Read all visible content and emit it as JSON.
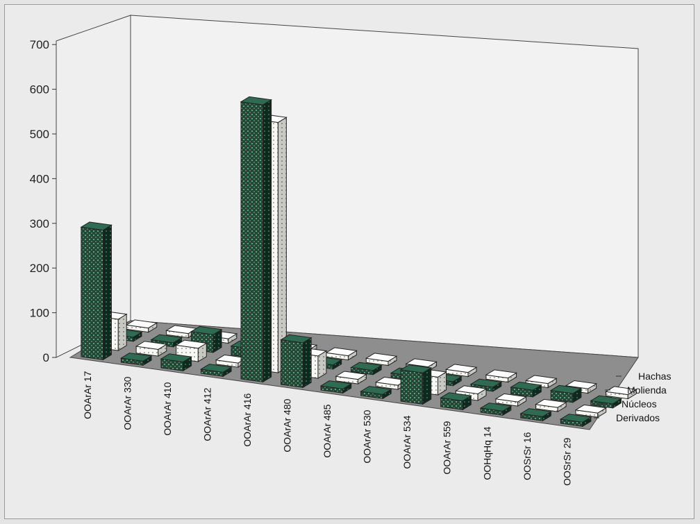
{
  "chart_data": {
    "type": "bar",
    "subtype": "3d-grouped-depth",
    "categories": [
      "OOArAr 17",
      "OOArAr 330",
      "OOArAr 410",
      "OOArAr 412",
      "OOArAr 416",
      "OOArAr 480",
      "OOArAr 485",
      "OOArAr 530",
      "OOArAr 534",
      "OOArAr 559",
      "OOHqHq 14",
      "OOSrSr 16",
      "OOSrSr 29"
    ],
    "series": [
      {
        "name": "Derivados",
        "color": "#1f4a36",
        "pattern": "dots-light",
        "values": [
          290,
          5,
          20,
          5,
          620,
          100,
          5,
          5,
          70,
          20,
          5,
          5,
          5
        ]
      },
      {
        "name": "Núcleos",
        "color": "#f7f7f3",
        "pattern": "dots-dark",
        "values": [
          70,
          15,
          30,
          5,
          560,
          50,
          10,
          5,
          40,
          15,
          5,
          5,
          5
        ]
      },
      {
        "name": "Molienda",
        "color": "#1f4a36",
        "pattern": "dots-light",
        "values": [
          5,
          5,
          40,
          20,
          5,
          5,
          5,
          5,
          5,
          5,
          15,
          20,
          5
        ]
      },
      {
        "name": "Hachas",
        "color": "#f7f7f3",
        "pattern": "dots-dark",
        "values": [
          5,
          5,
          10,
          5,
          5,
          5,
          5,
          5,
          5,
          5,
          5,
          10,
          5
        ]
      }
    ],
    "y_ticks": [
      "0",
      "100",
      "200",
      "300",
      "400",
      "500",
      "600",
      "700"
    ],
    "ylim": [
      0,
      700
    ],
    "legend_position": "right-depth-axis",
    "background_color": "#ebebeb",
    "floor_color": "#8e8e8e"
  }
}
